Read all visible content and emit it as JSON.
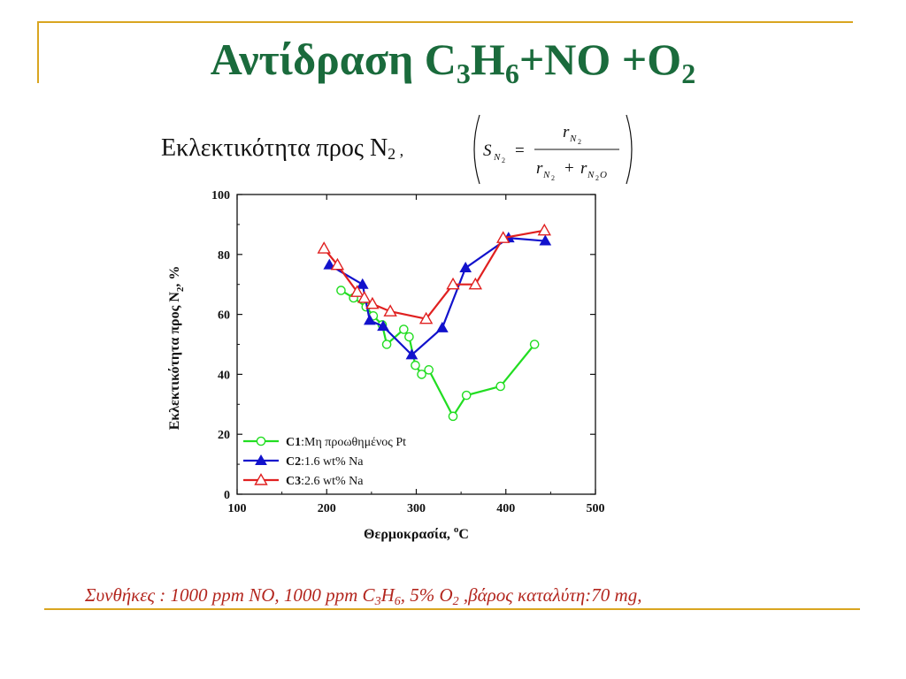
{
  "slide": {
    "title_main": "Αντίδραση C",
    "title_sub1": "3",
    "title_mid": "H",
    "title_sub2": "6",
    "title_tail": "+NO +O",
    "title_sub3": "2",
    "subtitle_text": "Εκλεκτικότητα προς N",
    "subtitle_sub": "2",
    "subtitle_tail": " ,",
    "formula": {
      "lhs": "S",
      "lhs_sub": "N",
      "lhs_subsub": "2",
      "equals": "=",
      "num": "r",
      "num_sub": "N",
      "num_subsub": "2",
      "den_a": "r",
      "den_a_sub": "N",
      "den_a_subsub": "2",
      "plus": "+",
      "den_b": "r",
      "den_b_sub": "N",
      "den_b_subsub": "2",
      "den_b_tail": "O"
    },
    "conditions": {
      "part1": "Συνθήκες : 1000 ppm NO, 1000 ppm C",
      "sub1": "3",
      "part2": "H",
      "sub2": "6",
      "part3": ", 5% O",
      "sub3": "2",
      "part4": " ,βάρος καταλύτη:70 mg,"
    },
    "colors": {
      "title": "#1a6b3c",
      "frame": "#d9a520",
      "conditions": "#b3261e"
    }
  },
  "chart_data": {
    "type": "line",
    "xlabel_main": "Θερμοκρασία, ",
    "xlabel_sup": "o",
    "xlabel_unit": "C",
    "ylabel_main": "Εκλεκτικότητα προς N",
    "ylabel_sub": "2",
    "ylabel_unit": ", %",
    "xlim": [
      100,
      500
    ],
    "ylim": [
      0,
      100
    ],
    "x_ticks": [
      100,
      200,
      300,
      400,
      500
    ],
    "y_ticks": [
      0,
      20,
      40,
      60,
      80,
      100
    ],
    "grid": false,
    "legend_position": "bottom-left",
    "series": [
      {
        "name_bold": "C1",
        "name_rest": ":Μη προωθημένος Pt",
        "color": "#22dd22",
        "marker": "open-circle",
        "x": [
          216,
          230,
          244,
          252,
          262,
          267,
          286,
          292,
          299,
          306,
          314,
          341,
          356,
          394,
          432
        ],
        "y": [
          68,
          65.5,
          62.5,
          59.5,
          56.5,
          50,
          55,
          52.5,
          43,
          40,
          41.5,
          26,
          33,
          36,
          50
        ]
      },
      {
        "name_bold": "C2",
        "name_rest": ":1.6 wt% Na",
        "color": "#1212cc",
        "marker": "filled-triangle",
        "x": [
          203,
          240,
          248,
          263,
          295,
          329,
          355,
          403,
          444
        ],
        "y": [
          76.5,
          70,
          58,
          56,
          46.5,
          55.5,
          75.5,
          85.5,
          84.5
        ]
      },
      {
        "name_bold": "C3",
        "name_rest": ":2.6 wt% Na",
        "color": "#e02020",
        "marker": "open-triangle",
        "x": [
          197,
          212,
          234,
          242,
          251,
          271,
          311,
          341,
          366,
          397,
          443
        ],
        "y": [
          82,
          76.5,
          67.5,
          65.5,
          63.5,
          61,
          58.5,
          70,
          70,
          85.5,
          88
        ]
      }
    ]
  }
}
